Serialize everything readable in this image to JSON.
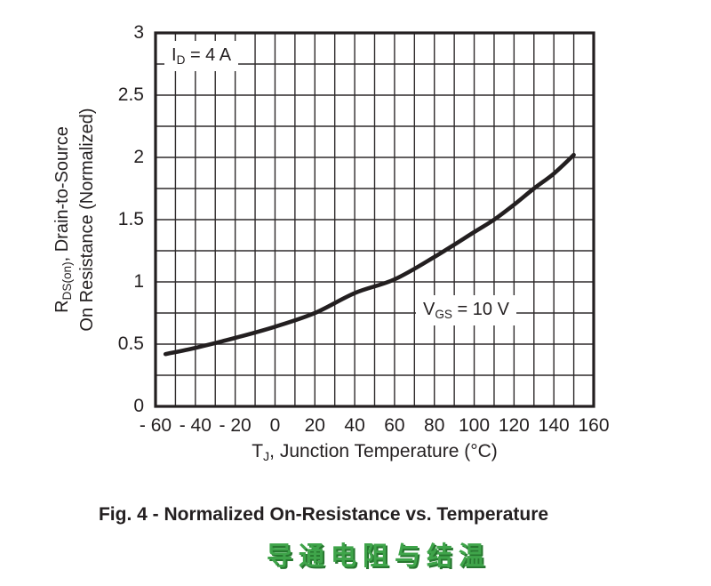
{
  "figure": {
    "caption": "Fig. 4 - Normalized On-Resistance vs. Temperature",
    "caption_cn": "导通电阻与结温"
  },
  "colors": {
    "ink": "#231f20",
    "grid": "#2e2a2b",
    "curve": "#231f20",
    "caption_green": "#3fa44a",
    "caption_green_shadow": "#27772f",
    "background": "#ffffff"
  },
  "axis": {
    "x_label": {
      "main": "T",
      "sub": "J",
      "rest": ", Junction Temperature (°C)"
    },
    "y_label": {
      "line1": {
        "main": "R",
        "sub": "DS(on)",
        "rest": ", Drain-to-Source"
      },
      "line2": "On Resistance (Normalized)"
    }
  },
  "annotations": {
    "id": {
      "main": "I",
      "sub": "D",
      "rest": " = 4 A"
    },
    "vgs": {
      "main": "V",
      "sub": "GS",
      "rest": " = 10 V"
    }
  },
  "chart_data": {
    "type": "line",
    "title": "Fig. 4 - Normalized On-Resistance vs. Temperature",
    "xlabel": "TJ, Junction Temperature (°C)",
    "ylabel": "RDS(on), Drain-to-Source On Resistance (Normalized)",
    "xlim": [
      -60,
      160
    ],
    "ylim": [
      0,
      3
    ],
    "grid": true,
    "x_grid_step": 10,
    "y_grid_step": 0.25,
    "x_ticks": [
      -60,
      -40,
      -20,
      0,
      20,
      40,
      60,
      80,
      100,
      120,
      140,
      160
    ],
    "x_tick_labels": [
      "- 60",
      "- 40",
      "- 20",
      "0",
      "20",
      "40",
      "60",
      "80",
      "100",
      "120",
      "140",
      "160"
    ],
    "y_ticks": [
      0,
      0.5,
      1,
      1.5,
      2,
      2.5,
      3
    ],
    "y_tick_labels": [
      "0",
      "0.5",
      "1",
      "1.5",
      "2",
      "2.5",
      "3"
    ],
    "legend": "none",
    "conditions": [
      "ID = 4 A",
      "VGS = 10 V"
    ],
    "series": [
      {
        "name": "RDS(on) normalized, VGS = 10 V, ID = 4 A",
        "x": [
          -55,
          -40,
          -20,
          0,
          20,
          40,
          60,
          80,
          100,
          110,
          120,
          130,
          140,
          150
        ],
        "y": [
          0.42,
          0.47,
          0.55,
          0.64,
          0.75,
          0.91,
          1.02,
          1.2,
          1.4,
          1.5,
          1.62,
          1.75,
          1.87,
          2.02
        ]
      }
    ]
  }
}
